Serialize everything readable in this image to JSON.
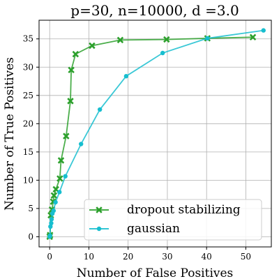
{
  "chart_data": {
    "type": "line",
    "title": "p=30, n=10000, d =3.0",
    "xlabel": "Number of False Positives",
    "ylabel": "Number of True Positives",
    "xlim": [
      -2.7,
      56.5
    ],
    "ylim": [
      -1.8,
      38.3
    ],
    "xticks": [
      0,
      10,
      20,
      30,
      40,
      50
    ],
    "yticks": [
      0,
      5,
      10,
      15,
      20,
      25,
      30,
      35
    ],
    "grid": true,
    "legend_position": "lower-right",
    "series": [
      {
        "name": "dropout stabilizing",
        "color": "#2ca02c",
        "marker": "x",
        "points": [
          [
            0,
            0
          ],
          [
            0.1,
            0.3
          ],
          [
            0.3,
            3.8
          ],
          [
            0.6,
            4.8
          ],
          [
            0.9,
            6.2
          ],
          [
            1.1,
            7.3
          ],
          [
            1.6,
            8.4
          ],
          [
            2.6,
            10.3
          ],
          [
            2.9,
            13.5
          ],
          [
            4.2,
            17.8
          ],
          [
            5.3,
            24.0
          ],
          [
            5.5,
            29.5
          ],
          [
            6.6,
            32.3
          ],
          [
            10.8,
            33.8
          ],
          [
            18.0,
            34.8
          ],
          [
            29.8,
            34.9
          ],
          [
            40.2,
            35.1
          ],
          [
            51.8,
            35.3
          ]
        ]
      },
      {
        "name": "gaussian",
        "color": "#17becf",
        "marker": "o",
        "points": [
          [
            0,
            0
          ],
          [
            0.1,
            0.2
          ],
          [
            0.2,
            1.8
          ],
          [
            0.4,
            2.4
          ],
          [
            0.5,
            3.1
          ],
          [
            0.7,
            4.1
          ],
          [
            1.0,
            4.6
          ],
          [
            1.5,
            6.1
          ],
          [
            2.5,
            7.9
          ],
          [
            4.0,
            10.7
          ],
          [
            8.0,
            16.4
          ],
          [
            12.8,
            22.5
          ],
          [
            19.5,
            28.4
          ],
          [
            28.8,
            32.5
          ],
          [
            40.2,
            35.1
          ],
          [
            54.5,
            36.5
          ]
        ]
      }
    ]
  }
}
